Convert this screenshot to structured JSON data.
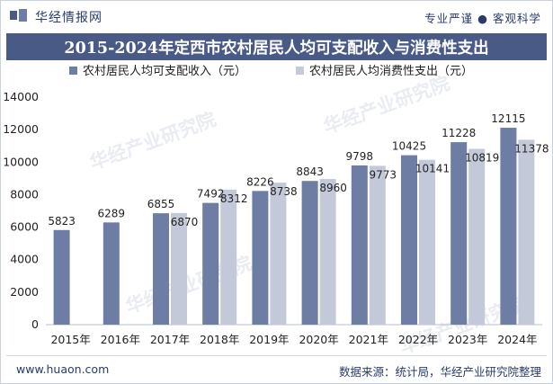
{
  "header": {
    "brand": "华经情报网",
    "tagline": "专业严谨 ● 客观科学"
  },
  "footer": {
    "website": "www.huaon.com",
    "source": "数据来源：统计局，华经产业研究院整理"
  },
  "watermarks": [
    "华经产业研究院",
    "华经产业研究院",
    "华经产业研究院",
    "华经产业研究院"
  ],
  "colors": {
    "title_bar": "#4a5a86",
    "series_income": "#6e7da3",
    "series_consumption": "#c3c9d9"
  },
  "chart_data": {
    "type": "bar",
    "title": "2015-2024年定西市农村居民人均可支配收入与消费性支出",
    "legend_position": "top-left",
    "grid": false,
    "categories": [
      "2015年",
      "2016年",
      "2017年",
      "2018年",
      "2019年",
      "2020年",
      "2021年",
      "2022年",
      "2023年",
      "2024年"
    ],
    "ylim": [
      0,
      14000
    ],
    "yticks": [
      "0",
      "2000",
      "4000",
      "6000",
      "8000",
      "10000",
      "12000",
      "14000"
    ],
    "series": [
      {
        "name": "农村居民人均可支配收入（元）",
        "values": [
          5823,
          6289,
          6855,
          7492,
          8226,
          8843,
          9798,
          10425,
          11228,
          12115
        ],
        "labels": [
          "5823",
          "6289",
          "6855",
          "7492",
          "8226",
          "8843",
          "9798",
          "10425",
          "11228",
          "12115"
        ]
      },
      {
        "name": "农村居民人均消费性支出（元）",
        "values": [
          null,
          null,
          6870,
          8312,
          8738,
          8960,
          9773,
          10141,
          10819,
          11378
        ],
        "labels": [
          "",
          "",
          "6870",
          "8312",
          "8738",
          "8960",
          "9773",
          "10141",
          "10819",
          "11378"
        ]
      }
    ]
  }
}
